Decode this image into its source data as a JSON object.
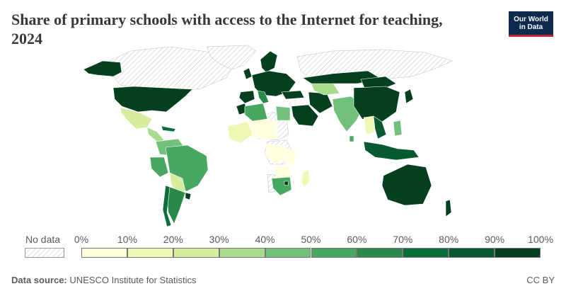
{
  "title": "Share of primary schools with access to the Internet for teaching, 2024",
  "logo": {
    "line1": "Our World",
    "line2": "in Data"
  },
  "legend": {
    "no_data_label": "No data",
    "ticks": [
      "0%",
      "10%",
      "20%",
      "30%",
      "40%",
      "50%",
      "60%",
      "70%",
      "80%",
      "90%",
      "100%"
    ],
    "colors": [
      "#ffffe0",
      "#f1f8b6",
      "#d6eda0",
      "#a8db8c",
      "#72c17a",
      "#48a862",
      "#2a8a4b",
      "#0b6d39",
      "#075a2e",
      "#04401f"
    ]
  },
  "footer": {
    "source_label": "Data source:",
    "source_text": "UNESCO Institute for Statistics",
    "license": "CC BY"
  },
  "regions": [
    {
      "id": "usa",
      "value": 100
    },
    {
      "id": "alaska",
      "value": 100
    },
    {
      "id": "mexico",
      "value": 25
    },
    {
      "id": "central-america",
      "value": 35
    },
    {
      "id": "caribbean",
      "value": 70
    },
    {
      "id": "colombia-venezuela",
      "value": 40
    },
    {
      "id": "peru",
      "value": 55
    },
    {
      "id": "brazil",
      "value": 55
    },
    {
      "id": "paraguay-bolivia",
      "value": 20
    },
    {
      "id": "chile",
      "value": 75
    },
    {
      "id": "argentina",
      "value": 60
    },
    {
      "id": "uruguay",
      "value": 100
    },
    {
      "id": "europe",
      "value": 95
    },
    {
      "id": "scandinavia",
      "value": 100
    },
    {
      "id": "uk-ireland",
      "value": 90
    },
    {
      "id": "iberia",
      "value": 95
    },
    {
      "id": "italy-balkans",
      "value": 60
    },
    {
      "id": "turkey",
      "value": 100
    },
    {
      "id": "morocco",
      "value": 90
    },
    {
      "id": "algeria",
      "value": 55
    },
    {
      "id": "egypt",
      "value": 40
    },
    {
      "id": "west-africa",
      "value": 10
    },
    {
      "id": "niger-chad",
      "value": 5
    },
    {
      "id": "drc-region",
      "value": 5
    },
    {
      "id": "tanzania",
      "value": 5
    },
    {
      "id": "zambia-zimbabwe",
      "value": 5
    },
    {
      "id": "south-africa",
      "value": 55
    },
    {
      "id": "eswatini",
      "value": 100
    },
    {
      "id": "madagascar",
      "value": 10
    },
    {
      "id": "saudi-arabia",
      "value": 100
    },
    {
      "id": "iran",
      "value": 90
    },
    {
      "id": "central-asia",
      "value": 30
    },
    {
      "id": "kazakhstan-russia",
      "value": 90
    },
    {
      "id": "india",
      "value": 45
    },
    {
      "id": "sri-lanka",
      "value": 55
    },
    {
      "id": "china",
      "value": 100
    },
    {
      "id": "mongolia",
      "value": 100
    },
    {
      "id": "se-asia",
      "value": 80
    },
    {
      "id": "thailand-laos",
      "value": 15
    },
    {
      "id": "philippines",
      "value": 40
    },
    {
      "id": "indonesia",
      "value": 85
    },
    {
      "id": "japan",
      "value": 100
    },
    {
      "id": "australia",
      "value": 100
    },
    {
      "id": "new-zealand",
      "value": 100
    }
  ]
}
